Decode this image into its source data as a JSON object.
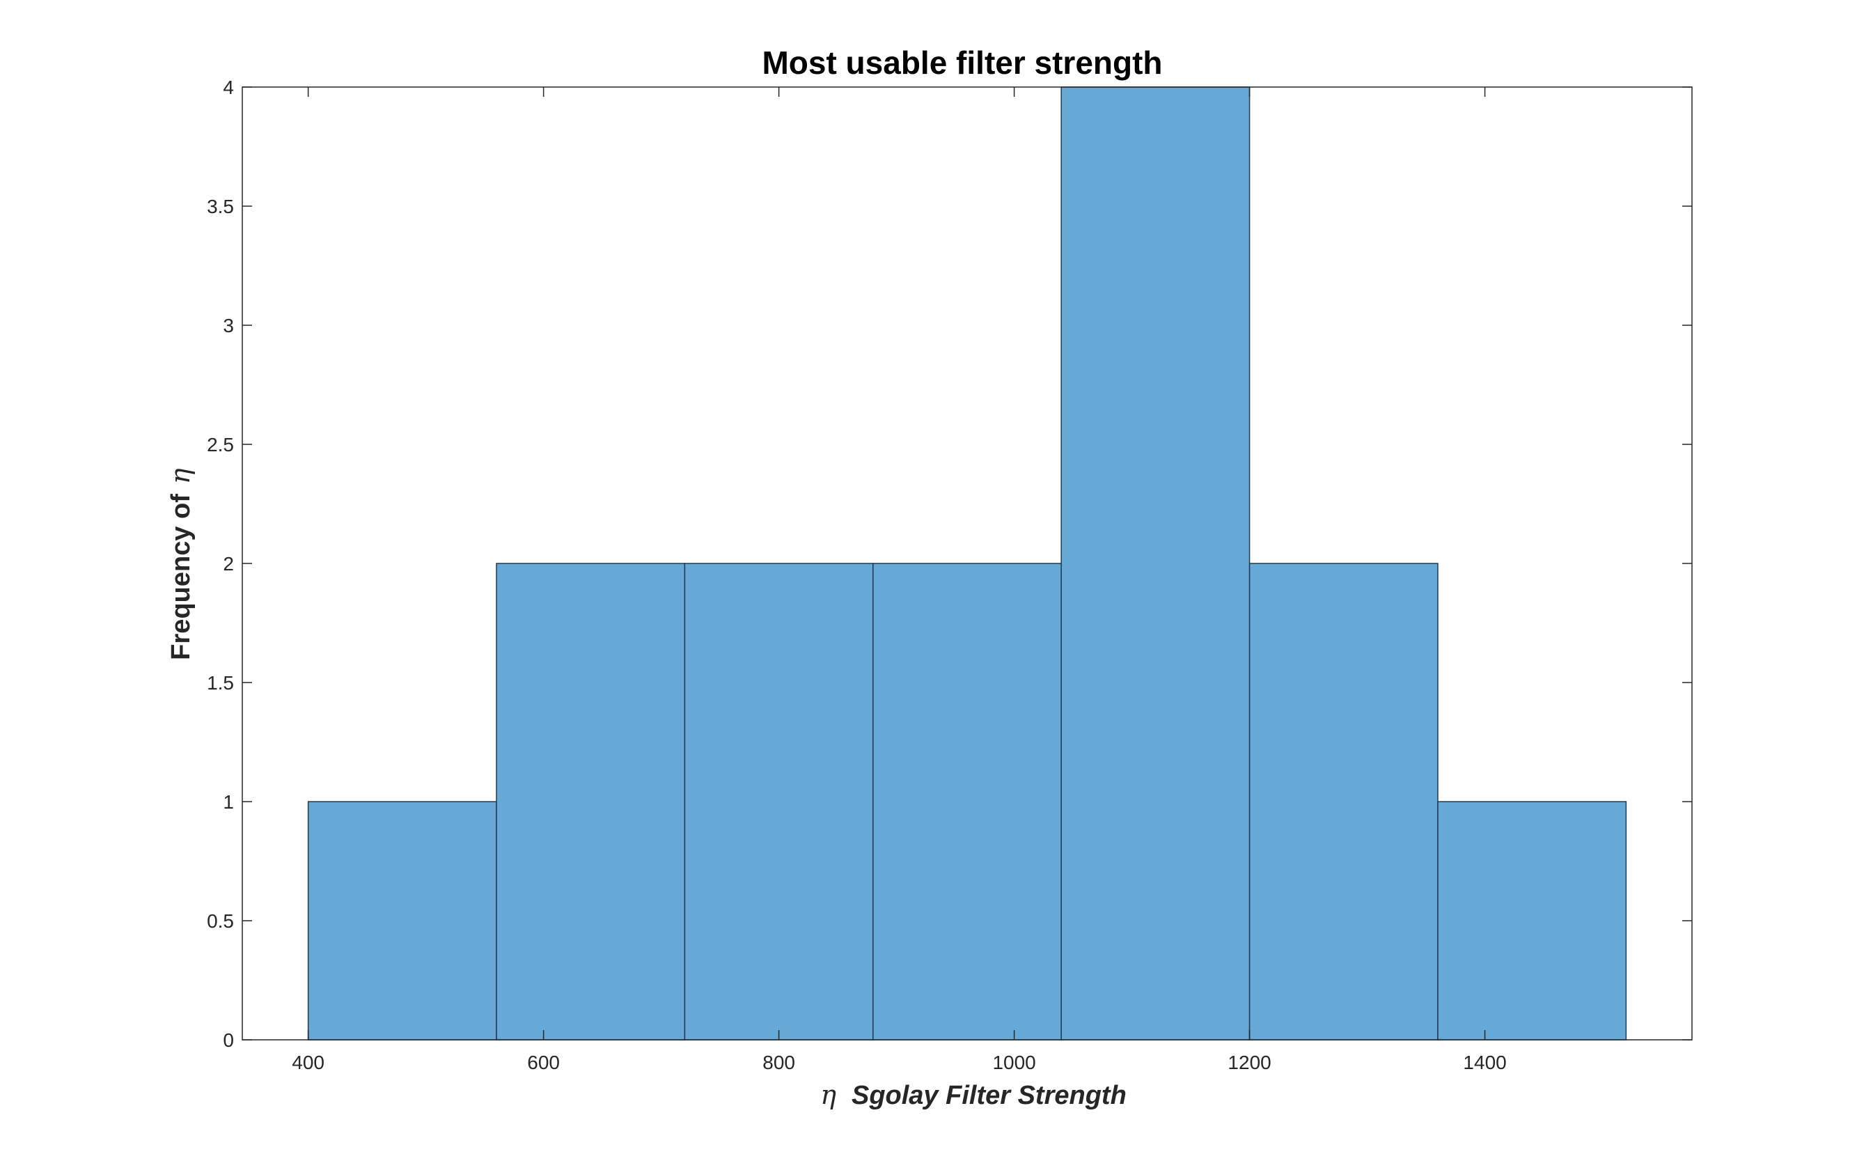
{
  "chart_data": {
    "type": "bar",
    "subtype": "histogram",
    "title": "Most usable filter strength",
    "xlabel_symbol": "η",
    "xlabel": "Sgolay Filter Strength",
    "ylabel": "Frequency of",
    "ylabel_symbol": "η",
    "bin_edges": [
      400,
      560,
      720,
      880,
      1040,
      1200,
      1360,
      1520
    ],
    "values": [
      1,
      2,
      2,
      2,
      4,
      2,
      1
    ],
    "xlim": [
      344,
      1576
    ],
    "ylim": [
      0,
      4
    ],
    "xticks": [
      400,
      600,
      800,
      1000,
      1200,
      1400
    ],
    "yticks": [
      0,
      0.5,
      1,
      1.5,
      2,
      2.5,
      3,
      3.5,
      4
    ],
    "ytick_labels": [
      "0",
      "0.5",
      "1",
      "1.5",
      "2",
      "2.5",
      "3",
      "3.5",
      "4"
    ],
    "grid": false,
    "legend": "none",
    "colors": {
      "bar_fill": "#67a9d6",
      "bar_edge": "#1f3a52",
      "axis": "#262626"
    }
  }
}
